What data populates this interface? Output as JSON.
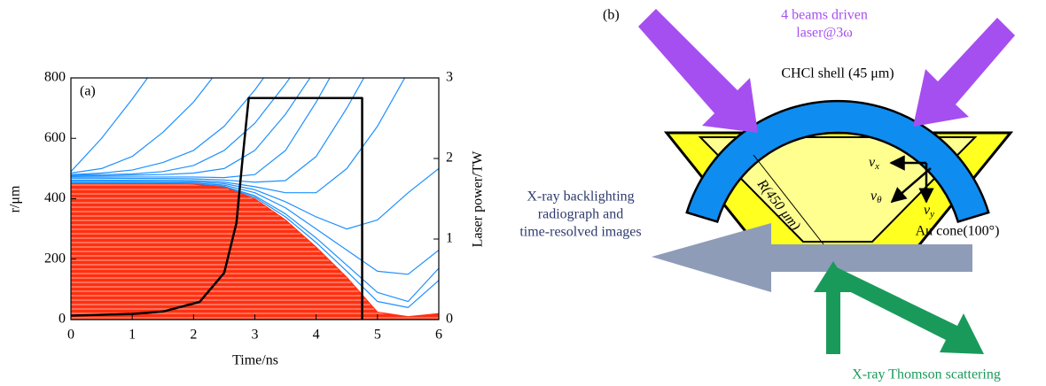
{
  "chart_data": {
    "type": "line",
    "panel_label": "(a)",
    "x_label": "Time/ns",
    "y_label": "r/μm",
    "y2_label": "Laser power/TW",
    "xlim": [
      0,
      6
    ],
    "xticks": [
      0,
      1,
      2,
      3,
      4,
      5,
      6
    ],
    "ylim": [
      0,
      800
    ],
    "yticks": [
      0,
      200,
      400,
      600,
      800
    ],
    "y2lim": [
      0,
      3
    ],
    "y2ticks": [
      0,
      1,
      2,
      3
    ],
    "x": [
      0,
      0.5,
      1,
      1.5,
      2,
      2.5,
      3,
      3.5,
      4,
      4.5,
      5,
      5.5,
      6
    ],
    "series": [
      {
        "color": "#1e90ff",
        "values": [
          490,
          600,
          730,
          870,
          null,
          null,
          null,
          null,
          null,
          null,
          null,
          null,
          null
        ]
      },
      {
        "color": "#1e90ff",
        "values": [
          485,
          500,
          540,
          620,
          720,
          850,
          null,
          null,
          null,
          null,
          null,
          null,
          null
        ]
      },
      {
        "color": "#1e90ff",
        "values": [
          480,
          485,
          495,
          520,
          560,
          640,
          760,
          900,
          null,
          null,
          null,
          null,
          null
        ]
      },
      {
        "color": "#1e90ff",
        "values": [
          478,
          480,
          482,
          490,
          510,
          560,
          650,
          780,
          920,
          null,
          null,
          null,
          null
        ]
      },
      {
        "color": "#1e90ff",
        "values": [
          475,
          476,
          478,
          480,
          485,
          500,
          560,
          680,
          830,
          null,
          null,
          null,
          null
        ]
      },
      {
        "color": "#1e90ff",
        "values": [
          472,
          472,
          472,
          472,
          472,
          470,
          480,
          560,
          720,
          900,
          null,
          null,
          null
        ]
      },
      {
        "color": "#1e90ff",
        "values": [
          468,
          468,
          467,
          467,
          466,
          462,
          455,
          460,
          540,
          700,
          880,
          null,
          null
        ]
      },
      {
        "color": "#1e90ff",
        "values": [
          462,
          462,
          461,
          461,
          460,
          455,
          440,
          420,
          420,
          500,
          640,
          820,
          null
        ]
      },
      {
        "color": "#1e90ff",
        "values": [
          458,
          458,
          458,
          457,
          456,
          450,
          430,
          390,
          340,
          300,
          330,
          420,
          500
        ]
      },
      {
        "color": "#1e90ff",
        "values": [
          454,
          454,
          454,
          453,
          452,
          445,
          420,
          370,
          300,
          230,
          160,
          150,
          230
        ]
      },
      {
        "color": "#1e90ff",
        "values": [
          451,
          451,
          451,
          450,
          449,
          441,
          410,
          350,
          270,
          180,
          90,
          60,
          170
        ]
      },
      {
        "color": "#1e90ff",
        "values": [
          450,
          450,
          450,
          450,
          448,
          440,
          405,
          340,
          255,
          160,
          60,
          40,
          130
        ]
      },
      {
        "color": "#ff3010",
        "type": "area",
        "values": [
          450,
          450,
          450,
          450,
          448,
          438,
          400,
          330,
          240,
          140,
          25,
          10,
          20
        ]
      },
      {
        "color": "#000000",
        "axis": "y2",
        "x": [
          0,
          1,
          1.5,
          2.1,
          2.5,
          2.7,
          2.8,
          2.9,
          4.75,
          4.75
        ],
        "values": [
          0.05,
          0.07,
          0.1,
          0.22,
          0.58,
          1.2,
          2.0,
          2.75,
          2.75,
          0
        ]
      }
    ]
  },
  "diagram": {
    "panel_label": "(b)",
    "beams_label": [
      "4 beams driven",
      "laser@3ω"
    ],
    "shell_label": "CHCl shell (45 μm)",
    "radius_label": "R(450 μm)",
    "cone_label": "Au cone(100°)",
    "velocities": [
      {
        "symbol": "v",
        "subscript": "x"
      },
      {
        "symbol": "v",
        "subscript": "θ"
      },
      {
        "symbol": "v",
        "subscript": "y"
      }
    ],
    "backlighting_label": [
      "X-ray backlighting",
      "radiograph and",
      "time-resolved images"
    ],
    "thomson_label": "X-ray Thomson scattering"
  }
}
